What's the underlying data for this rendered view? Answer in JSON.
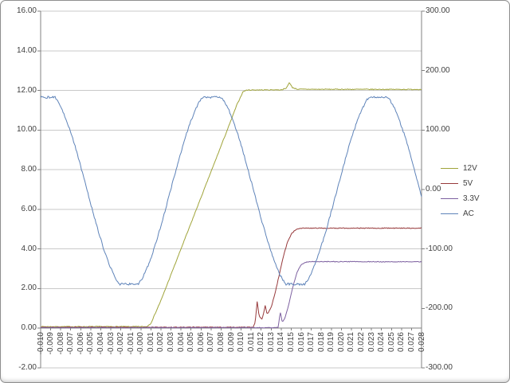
{
  "window": {
    "background": "#ffffff",
    "border_color": "#8f8f8f"
  },
  "chart_data": {
    "type": "line",
    "title": "",
    "grid": "horizontal",
    "colors": {
      "plot_background": "#ffffff",
      "gridline": "#c9c9c9",
      "axis_line": "#808080",
      "tick_label": "#3f3f3f"
    },
    "x_axis": {
      "min": -0.01,
      "max": 0.028,
      "tick_step": 0.001,
      "tick_labels": [
        "-0.010",
        "-0.009",
        "-0.008",
        "-0.007",
        "-0.006",
        "-0.005",
        "-0.004",
        "-0.003",
        "-0.002",
        "-0.001",
        "-0.000",
        "0.001",
        "0.002",
        "0.003",
        "0.004",
        "0.005",
        "0.006",
        "0.007",
        "0.008",
        "0.009",
        "0.010",
        "0.011",
        "0.012",
        "0.013",
        "0.014",
        "0.015",
        "0.016",
        "0.017",
        "0.018",
        "0.019",
        "0.020",
        "0.021",
        "0.022",
        "0.023",
        "0.024",
        "0.025",
        "0.026",
        "0.027",
        "0.028"
      ]
    },
    "y_left": {
      "min": -2,
      "max": 16,
      "step": 2,
      "tick_labels": [
        "16.00",
        "14.00",
        "12.00",
        "10.00",
        "8.00",
        "6.00",
        "4.00",
        "2.00",
        "0.00",
        "-2.00"
      ]
    },
    "y_right": {
      "min": -300,
      "max": 300,
      "step": 100,
      "tick_labels": [
        "300.00",
        "200.00",
        "100.00",
        "0.00",
        "-100.00",
        "-200.00",
        "-300.00"
      ]
    },
    "legend": {
      "position": "right",
      "entries": [
        "12V",
        "5V",
        "3.3V",
        "AC"
      ]
    },
    "series": [
      {
        "name": "12V",
        "axis": "left",
        "color": "#a0a43a",
        "noise": 0.02,
        "points": [
          [
            -0.01,
            0.08
          ],
          [
            0.0006,
            0.08
          ],
          [
            0.001,
            0.25
          ],
          [
            0.002,
            1.4
          ],
          [
            0.003,
            2.7
          ],
          [
            0.004,
            4.0
          ],
          [
            0.005,
            5.3
          ],
          [
            0.006,
            6.6
          ],
          [
            0.007,
            7.9
          ],
          [
            0.008,
            9.2
          ],
          [
            0.009,
            10.5
          ],
          [
            0.0096,
            11.3
          ],
          [
            0.0102,
            11.95
          ],
          [
            0.0106,
            12.02
          ],
          [
            0.014,
            12.03
          ],
          [
            0.0145,
            12.1
          ],
          [
            0.0148,
            12.4
          ],
          [
            0.0151,
            12.15
          ],
          [
            0.0156,
            12.06
          ],
          [
            0.028,
            12.05
          ]
        ]
      },
      {
        "name": "5V",
        "axis": "left",
        "color": "#97393b",
        "noise": 0.02,
        "points": [
          [
            -0.01,
            0.05
          ],
          [
            0.0112,
            0.05
          ],
          [
            0.0114,
            0.3
          ],
          [
            0.0116,
            1.35
          ],
          [
            0.0118,
            0.6
          ],
          [
            0.0121,
            0.45
          ],
          [
            0.0124,
            1.15
          ],
          [
            0.0126,
            0.7
          ],
          [
            0.013,
            1.05
          ],
          [
            0.0134,
            1.8
          ],
          [
            0.0138,
            2.7
          ],
          [
            0.0142,
            3.6
          ],
          [
            0.0146,
            4.3
          ],
          [
            0.015,
            4.75
          ],
          [
            0.0154,
            4.95
          ],
          [
            0.0158,
            5.03
          ],
          [
            0.0165,
            5.05
          ],
          [
            0.028,
            5.05
          ]
        ]
      },
      {
        "name": "3.3V",
        "axis": "left",
        "color": "#7d60a0",
        "noise": 0.018,
        "points": [
          [
            -0.01,
            0.03
          ],
          [
            0.0137,
            0.03
          ],
          [
            0.0139,
            0.85
          ],
          [
            0.0141,
            0.3
          ],
          [
            0.0144,
            0.55
          ],
          [
            0.0147,
            1.1
          ],
          [
            0.015,
            1.75
          ],
          [
            0.0153,
            2.35
          ],
          [
            0.0156,
            2.85
          ],
          [
            0.016,
            3.2
          ],
          [
            0.0164,
            3.33
          ],
          [
            0.017,
            3.36
          ],
          [
            0.028,
            3.35
          ]
        ]
      },
      {
        "name": "AC",
        "axis": "right",
        "color": "#5e83b9",
        "noise": 1.8,
        "sine": {
          "amplitude": 168,
          "clip": 157,
          "offset": -2,
          "period": 0.0166,
          "peak_x": -0.0095
        },
        "sampled_points": [
          [
            -0.01,
            155
          ],
          [
            -0.009,
            155
          ],
          [
            -0.008,
            140
          ],
          [
            -0.007,
            96
          ],
          [
            -0.006,
            39
          ],
          [
            -0.005,
            -24
          ],
          [
            -0.004,
            -84
          ],
          [
            -0.003,
            -133
          ],
          [
            -0.002,
            -159
          ],
          [
            -0.001,
            -159
          ],
          [
            0.0,
            -153
          ],
          [
            0.001,
            -115
          ],
          [
            0.002,
            -61
          ],
          [
            0.003,
            1
          ],
          [
            0.004,
            63
          ],
          [
            0.005,
            117
          ],
          [
            0.006,
            152
          ],
          [
            0.007,
            155
          ],
          [
            0.008,
            155
          ],
          [
            0.009,
            124
          ],
          [
            0.01,
            74
          ],
          [
            0.011,
            14
          ],
          [
            0.012,
            -49
          ],
          [
            0.013,
            -105
          ],
          [
            0.014,
            -147
          ],
          [
            0.015,
            -159
          ],
          [
            0.016,
            -159
          ],
          [
            0.017,
            -140
          ],
          [
            0.018,
            -95
          ],
          [
            0.019,
            -37
          ],
          [
            0.02,
            26
          ],
          [
            0.021,
            86
          ],
          [
            0.022,
            132
          ],
          [
            0.023,
            155
          ],
          [
            0.024,
            155
          ],
          [
            0.025,
            146
          ],
          [
            0.026,
            106
          ],
          [
            0.027,
            51
          ],
          [
            0.028,
            -12
          ]
        ]
      }
    ]
  }
}
